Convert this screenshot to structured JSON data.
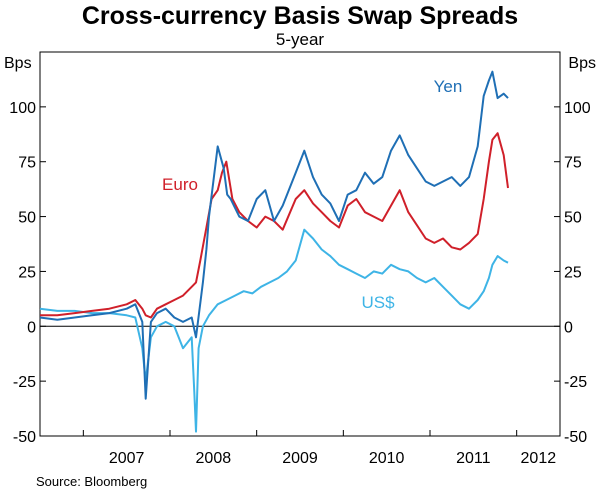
{
  "chart_data": {
    "type": "line",
    "title": "Cross-currency Basis Swap Spreads",
    "subtitle": "5-year",
    "ylabel_left": "Bps",
    "ylabel_right": "Bps",
    "ylim": [
      -50,
      125
    ],
    "yticks": [
      -50,
      -25,
      0,
      25,
      50,
      75,
      100
    ],
    "ytick_labels": [
      "-50",
      "-25",
      "0",
      "25",
      "50",
      "75",
      "100"
    ],
    "x_categories": [
      "2007",
      "2008",
      "2009",
      "2010",
      "2011",
      "2012"
    ],
    "xlim": [
      2006.5,
      2012.5
    ],
    "grid": false,
    "zero_line": true,
    "source": "Source: Bloomberg",
    "series": [
      {
        "name": "Yen",
        "color": "#1f6fb5",
        "x": [
          2006.5,
          2006.7,
          2006.9,
          2007.1,
          2007.3,
          2007.5,
          2007.6,
          2007.68,
          2007.72,
          2007.78,
          2007.85,
          2007.95,
          2008.05,
          2008.15,
          2008.25,
          2008.3,
          2008.38,
          2008.42,
          2008.45,
          2008.55,
          2008.62,
          2008.66,
          2008.7,
          2008.8,
          2008.9,
          2009.0,
          2009.1,
          2009.2,
          2009.3,
          2009.45,
          2009.55,
          2009.65,
          2009.75,
          2009.85,
          2009.95,
          2010.05,
          2010.15,
          2010.25,
          2010.35,
          2010.45,
          2010.55,
          2010.65,
          2010.75,
          2010.85,
          2010.95,
          2011.05,
          2011.15,
          2011.25,
          2011.35,
          2011.45,
          2011.55,
          2011.62,
          2011.68,
          2011.72,
          2011.78,
          2011.85,
          2011.9
        ],
        "y": [
          4,
          3,
          4,
          5,
          6,
          8,
          10,
          2,
          -33,
          2,
          6,
          8,
          4,
          2,
          4,
          -5,
          20,
          35,
          50,
          82,
          72,
          60,
          58,
          50,
          48,
          58,
          62,
          48,
          55,
          70,
          80,
          68,
          60,
          56,
          48,
          60,
          62,
          70,
          65,
          68,
          80,
          87,
          78,
          72,
          66,
          64,
          66,
          68,
          64,
          68,
          82,
          105,
          112,
          116,
          104,
          106,
          104
        ]
      },
      {
        "name": "Euro",
        "color": "#d0202a",
        "x": [
          2006.5,
          2006.7,
          2006.9,
          2007.1,
          2007.3,
          2007.5,
          2007.6,
          2007.68,
          2007.72,
          2007.78,
          2007.85,
          2007.95,
          2008.05,
          2008.15,
          2008.25,
          2008.3,
          2008.35,
          2008.42,
          2008.48,
          2008.55,
          2008.6,
          2008.65,
          2008.72,
          2008.8,
          2008.9,
          2009.0,
          2009.1,
          2009.2,
          2009.3,
          2009.45,
          2009.55,
          2009.65,
          2009.75,
          2009.85,
          2009.95,
          2010.05,
          2010.15,
          2010.25,
          2010.35,
          2010.45,
          2010.55,
          2010.65,
          2010.75,
          2010.85,
          2010.95,
          2011.05,
          2011.15,
          2011.25,
          2011.35,
          2011.45,
          2011.55,
          2011.62,
          2011.68,
          2011.72,
          2011.78,
          2011.85,
          2011.9
        ],
        "y": [
          5,
          5,
          6,
          7,
          8,
          10,
          12,
          8,
          5,
          4,
          8,
          10,
          12,
          14,
          18,
          20,
          30,
          45,
          58,
          62,
          70,
          75,
          58,
          52,
          48,
          45,
          50,
          48,
          44,
          58,
          62,
          56,
          52,
          48,
          45,
          55,
          58,
          52,
          50,
          48,
          55,
          62,
          52,
          46,
          40,
          38,
          40,
          36,
          35,
          38,
          42,
          58,
          75,
          85,
          88,
          78,
          63
        ]
      },
      {
        "name": "US$",
        "color": "#3eb4e6",
        "x": [
          2006.5,
          2006.7,
          2006.9,
          2007.1,
          2007.3,
          2007.5,
          2007.6,
          2007.68,
          2007.72,
          2007.78,
          2007.85,
          2007.95,
          2008.05,
          2008.15,
          2008.25,
          2008.28,
          2008.3,
          2008.33,
          2008.38,
          2008.45,
          2008.55,
          2008.65,
          2008.75,
          2008.85,
          2008.95,
          2009.05,
          2009.15,
          2009.25,
          2009.35,
          2009.45,
          2009.55,
          2009.65,
          2009.75,
          2009.85,
          2009.95,
          2010.05,
          2010.15,
          2010.25,
          2010.35,
          2010.45,
          2010.55,
          2010.65,
          2010.75,
          2010.85,
          2010.95,
          2011.05,
          2011.15,
          2011.25,
          2011.35,
          2011.45,
          2011.55,
          2011.62,
          2011.68,
          2011.72,
          2011.78,
          2011.85,
          2011.9
        ],
        "y": [
          8,
          7,
          7,
          6,
          6,
          5,
          4,
          -10,
          -25,
          -5,
          0,
          2,
          0,
          -10,
          -5,
          -30,
          -48,
          -10,
          0,
          5,
          10,
          12,
          14,
          16,
          15,
          18,
          20,
          22,
          25,
          30,
          44,
          40,
          35,
          32,
          28,
          26,
          24,
          22,
          25,
          24,
          28,
          26,
          25,
          22,
          20,
          22,
          18,
          14,
          10,
          8,
          12,
          16,
          22,
          28,
          32,
          30,
          29
        ]
      }
    ]
  },
  "series_labels": {
    "yen": "Yen",
    "euro": "Euro",
    "usd": "US$"
  }
}
